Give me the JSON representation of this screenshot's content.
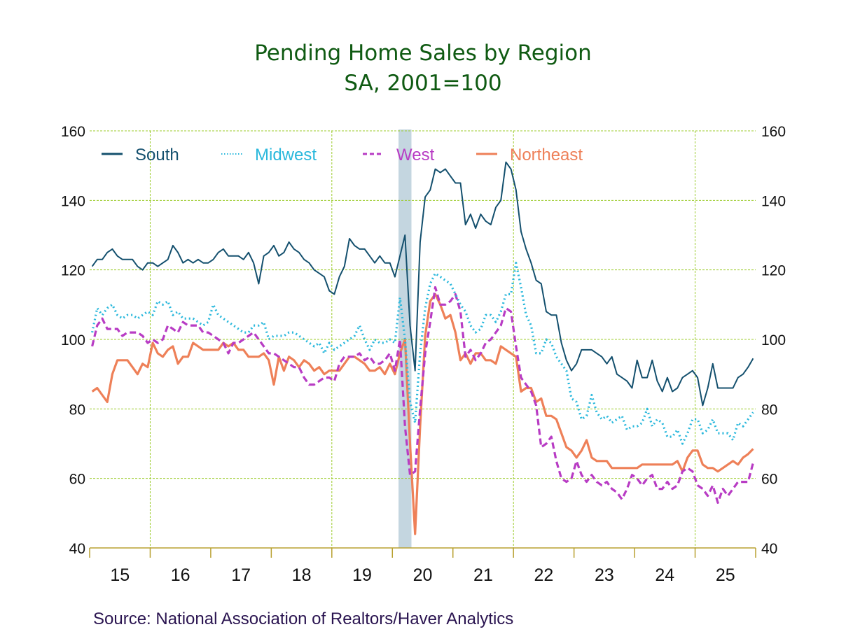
{
  "chart_data": {
    "type": "line",
    "title": "Pending Home Sales by Region",
    "subtitle": "SA, 2001=100",
    "xlabel": "",
    "ylabel": "",
    "ylim": [
      40,
      160
    ],
    "yticks": [
      40,
      60,
      80,
      100,
      120,
      140,
      160
    ],
    "xtick_labels": [
      "15",
      "16",
      "17",
      "18",
      "19",
      "20",
      "21",
      "22",
      "23",
      "24",
      "25"
    ],
    "x_start": "2015-01",
    "frequency": "monthly",
    "grid": true,
    "legend_position": "top",
    "recession_shading": {
      "start": "2020-02",
      "end": "2020-04",
      "color": "#c4d6e0"
    },
    "series": [
      {
        "name": "South",
        "color": "#14506e",
        "style": "solid",
        "values": [
          121,
          123,
          123,
          125,
          126,
          124,
          123,
          123,
          123,
          121,
          120,
          122,
          122,
          121,
          122,
          123,
          127,
          125,
          122,
          123,
          122,
          123,
          122,
          122,
          123,
          125,
          126,
          124,
          124,
          124,
          123,
          125,
          122,
          116,
          124,
          125,
          127,
          124,
          125,
          128,
          126,
          125,
          123,
          122,
          120,
          119,
          118,
          114,
          113,
          118,
          121,
          129,
          127,
          126,
          126,
          124,
          122,
          124,
          122,
          122,
          118,
          124,
          130,
          104,
          91,
          128,
          141,
          143,
          149,
          148,
          149,
          147,
          145,
          145,
          133,
          136,
          132,
          136,
          134,
          133,
          138,
          140,
          151,
          149,
          143,
          131,
          126,
          122,
          117,
          116,
          108,
          107,
          107,
          99,
          94,
          91,
          93,
          97,
          97,
          97,
          96,
          95,
          93,
          95,
          90,
          89,
          88,
          86,
          94,
          89,
          89,
          94,
          88,
          85,
          89,
          85,
          86,
          89,
          90,
          91,
          89,
          81,
          86,
          93,
          86,
          86,
          86,
          86,
          89,
          90,
          92,
          94.5
        ]
      },
      {
        "name": "Midwest",
        "color": "#2ab8dc",
        "style": "dotted",
        "values": [
          102,
          109,
          107,
          109,
          110,
          107,
          106,
          107,
          107,
          106,
          107,
          108,
          107,
          111,
          110,
          111,
          107,
          108,
          106,
          106,
          106,
          105,
          104,
          105,
          110,
          107,
          106,
          105,
          104,
          103,
          102,
          102,
          104,
          104,
          105,
          100,
          101,
          101,
          101,
          102,
          102,
          101,
          100,
          99,
          98,
          99,
          96,
          99,
          97,
          98,
          99,
          100,
          101,
          104,
          100,
          97,
          100,
          99,
          99,
          100,
          99,
          112,
          100,
          82,
          76,
          96,
          109,
          116,
          119,
          118,
          117,
          116,
          113,
          110,
          108,
          104,
          102,
          103,
          107,
          107,
          105,
          108,
          113,
          113,
          122,
          115,
          107,
          104,
          96,
          96,
          100,
          99,
          95,
          93,
          91,
          83,
          82,
          77,
          78,
          84,
          79,
          77,
          78,
          76,
          77,
          78,
          74,
          75,
          75,
          76,
          80,
          75,
          77,
          76,
          72,
          72,
          74,
          70,
          73,
          77,
          77,
          73,
          74,
          77,
          73,
          73,
          73,
          71,
          76,
          75,
          77,
          79
        ]
      },
      {
        "name": "West",
        "color": "#b83cc4",
        "style": "dashed",
        "values": [
          98,
          104,
          106,
          103,
          103,
          103,
          101,
          102,
          102,
          102,
          101,
          99,
          100,
          99,
          100,
          104,
          103,
          102,
          105,
          104,
          104,
          104,
          102,
          102,
          101,
          100,
          99,
          96,
          99,
          99,
          100,
          101,
          102,
          100,
          98,
          96,
          96,
          95,
          94,
          93,
          92,
          92,
          89,
          87,
          87,
          88,
          89,
          89,
          88,
          93,
          95,
          95,
          95,
          96,
          94,
          95,
          93,
          93,
          94,
          96,
          91,
          100,
          75,
          61,
          62,
          80,
          96,
          105,
          115,
          110,
          110,
          111,
          113,
          108,
          95,
          97,
          94,
          96,
          99,
          100,
          102,
          104,
          109,
          108,
          98,
          89,
          87,
          85,
          81,
          69,
          70,
          72,
          65,
          60,
          59,
          60,
          65,
          61,
          59,
          61,
          59,
          58,
          59,
          57,
          56,
          54,
          57,
          61,
          60,
          58,
          60,
          61,
          57,
          57,
          59,
          57,
          58,
          62,
          63,
          62,
          58,
          57,
          55,
          58,
          53,
          57,
          55,
          57,
          59,
          59,
          59,
          64.5
        ]
      },
      {
        "name": "Northeast",
        "color": "#ee8058",
        "style": "solid",
        "values": [
          85,
          86,
          84,
          82,
          90,
          94,
          94,
          94,
          92,
          90,
          93,
          92,
          99,
          96,
          95,
          97,
          98,
          93,
          95,
          95,
          99,
          98,
          97,
          97,
          97,
          97,
          99,
          98,
          99,
          97,
          97,
          95,
          95,
          95,
          96,
          94,
          87,
          95,
          91,
          95,
          94,
          92,
          94,
          93,
          91,
          92,
          90,
          91,
          91,
          91,
          93,
          95,
          95,
          94,
          93,
          91,
          91,
          92,
          90,
          93,
          90,
          96,
          100,
          70,
          44,
          75,
          101,
          111,
          113,
          110,
          106,
          107,
          102,
          94,
          96,
          93,
          96,
          96,
          94,
          94,
          93,
          98,
          97,
          96,
          95,
          85,
          86,
          86,
          82,
          83,
          78,
          78,
          77,
          73,
          69,
          68,
          66,
          68,
          71,
          66,
          65,
          65,
          65,
          63,
          63,
          63,
          63,
          63,
          63,
          64,
          64,
          64,
          64,
          64,
          64,
          64,
          65,
          62,
          66,
          68,
          68,
          64,
          63,
          63,
          62,
          63,
          64,
          65,
          64,
          66,
          67,
          68.5
        ]
      }
    ]
  },
  "source": "Source:  National Association of Realtors/Haver Analytics"
}
